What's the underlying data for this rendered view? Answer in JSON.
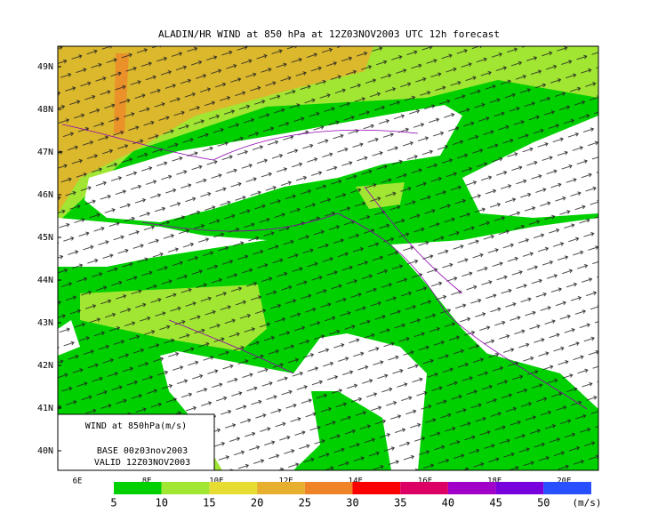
{
  "title": "ALADIN/HR WIND at 850 hPa at 12Z03NOV2003 UTC 12h forecast",
  "map": {
    "lat_labels": [
      "49N",
      "48N",
      "47N",
      "46N",
      "45N",
      "44N",
      "43N",
      "42N",
      "41N",
      "40N"
    ],
    "lon_labels": [
      "6E",
      "8E",
      "10E",
      "12E",
      "14E",
      "16E",
      "18E",
      "20E"
    ]
  },
  "info_box": {
    "line1": "WIND at 850hPa(m/s)",
    "line2": "BASE 00z03nov2003",
    "line3": "VALID 12Z03NOV2003"
  },
  "colorbar": {
    "levels": [
      5,
      10,
      15,
      20,
      25,
      30,
      35,
      40,
      45,
      50
    ],
    "colors": [
      "#00d000",
      "#a0e632",
      "#e6dc32",
      "#e6af2d",
      "#f08228",
      "#fa0000",
      "#dc0064",
      "#a000c8",
      "#7800dc",
      "#2850ff"
    ],
    "unit": "(m/s)"
  }
}
